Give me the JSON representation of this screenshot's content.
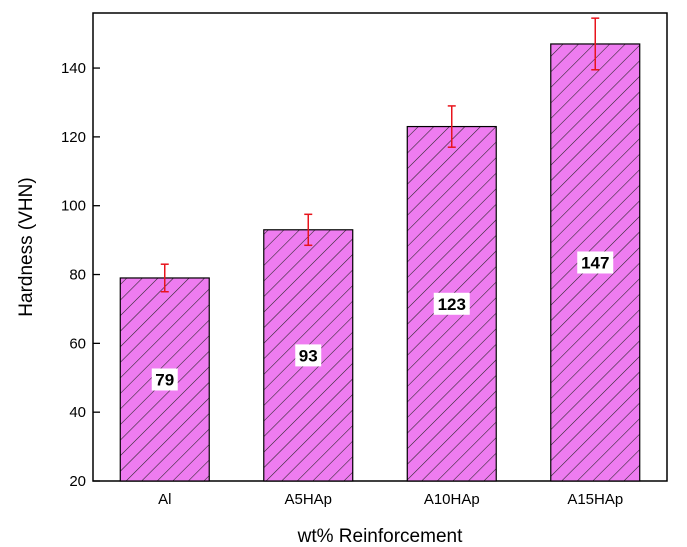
{
  "chart_data": {
    "type": "bar",
    "title": "",
    "xlabel": "wt% Reinforcement",
    "ylabel": "Hardness (VHN)",
    "categories": [
      "Al",
      "A5HAp",
      "A10HAp",
      "A15HAp"
    ],
    "values": [
      79,
      93,
      123,
      147
    ],
    "error": [
      4,
      4.5,
      6,
      7.5
    ],
    "data_labels": [
      "79",
      "93",
      "123",
      "147"
    ],
    "ylim": [
      20,
      156
    ],
    "yticks": [
      20,
      40,
      60,
      80,
      100,
      120,
      140
    ],
    "ytick_labels": [
      "20",
      "40",
      "60",
      "80",
      "100",
      "120",
      "140"
    ],
    "grid": false,
    "legend": "none",
    "bar_pattern": "diagonal-hatch",
    "bar_color": "#ee7cf0",
    "hatch_color": "#222222",
    "error_bar_color": "#e8141c"
  }
}
